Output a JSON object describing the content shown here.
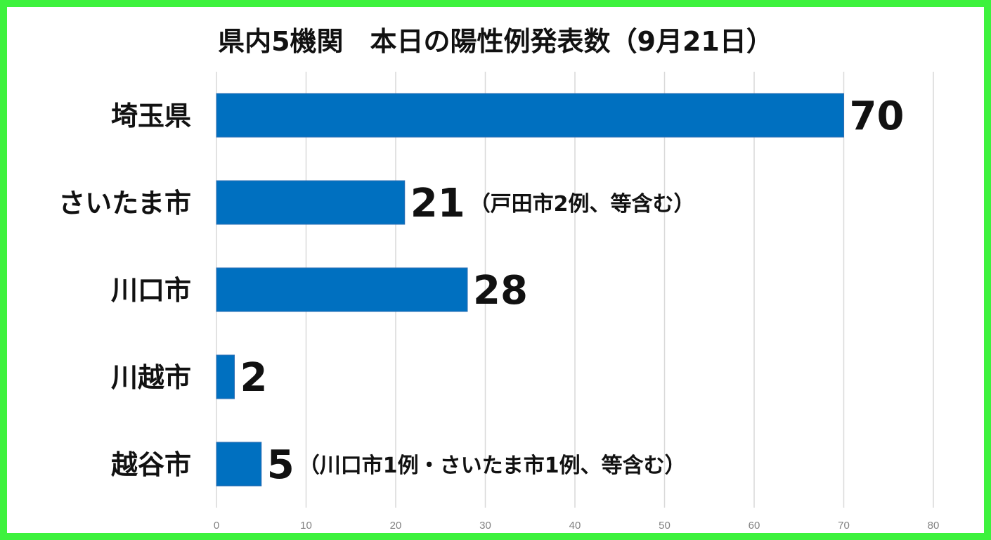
{
  "chart_data": {
    "type": "bar",
    "orientation": "horizontal",
    "title": "県内5機関　本日の陽性例発表数（9月21日）",
    "categories": [
      "埼玉県",
      "さいたま市",
      "川口市",
      "川越市",
      "越谷市"
    ],
    "values": [
      70,
      21,
      28,
      2,
      5
    ],
    "value_labels": [
      "70",
      "21",
      "28",
      "2",
      "5"
    ],
    "annotations": [
      "",
      "（戸田市2例、等含む）",
      "",
      "",
      "（川口市1例・さいたま市1例、等含む）"
    ],
    "xlim": [
      0,
      80
    ],
    "x_ticks": [
      "0",
      "10",
      "20",
      "30",
      "40",
      "50",
      "60",
      "70",
      "80"
    ],
    "grid": true,
    "legend": "none",
    "bar_color": "#0070c0",
    "frame_color": "#3df23d"
  }
}
